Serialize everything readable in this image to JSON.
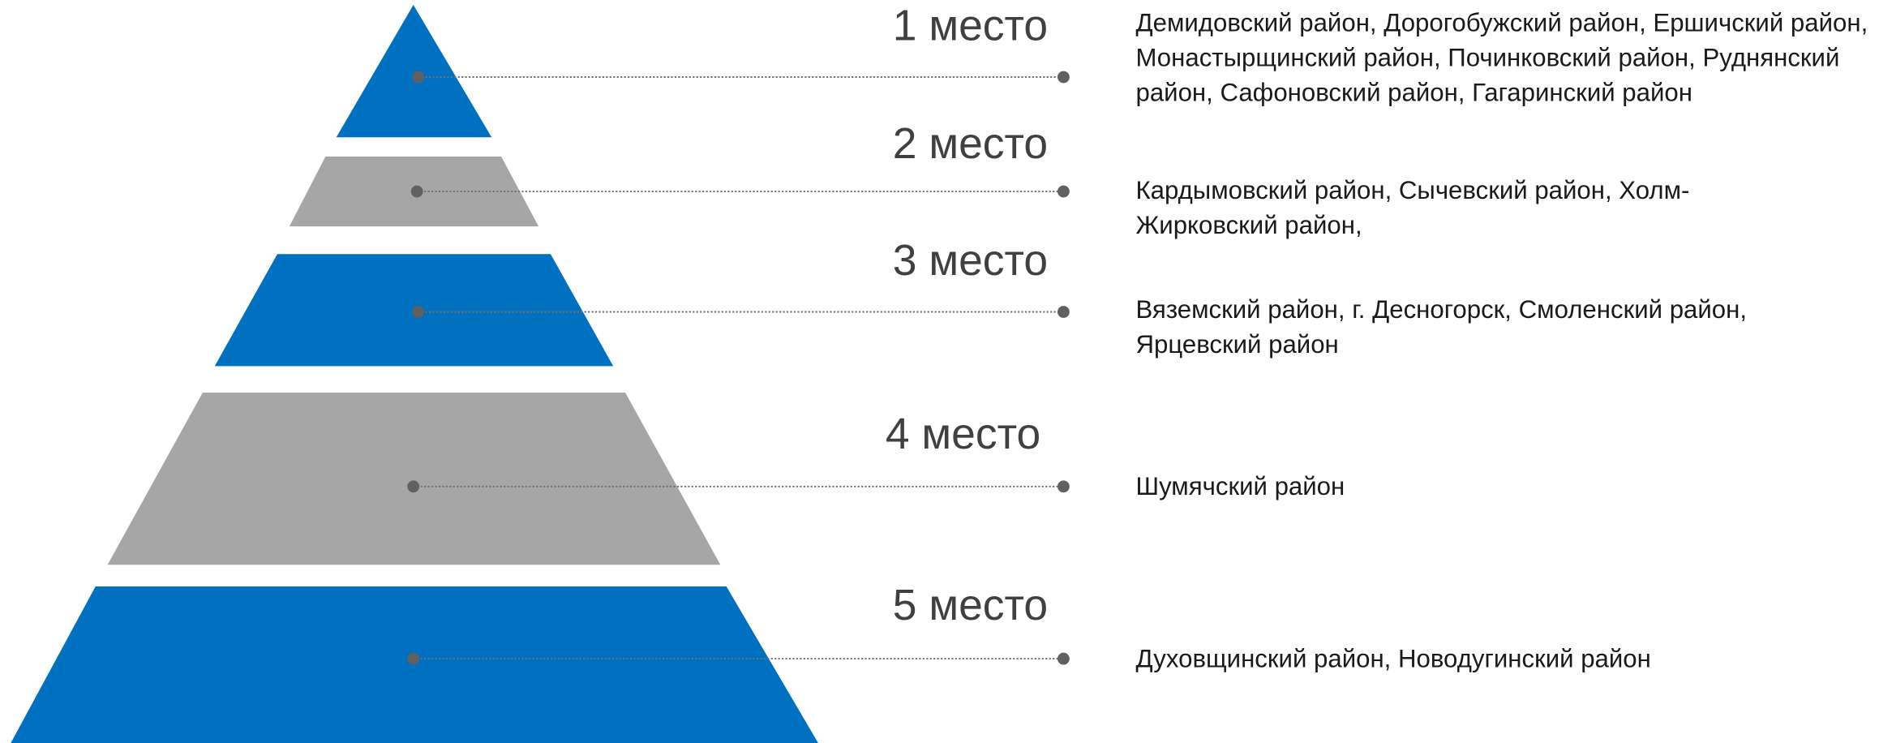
{
  "levels": [
    {
      "place": "1 место",
      "text": "Демидовский район, Дорогобужский район, Ершичский район, Монастырщинский район, Починковский район, Руднянский район, Сафоновский район, Гагаринский район"
    },
    {
      "place": "2 место",
      "text": "Кардымовский район, Сычевский район, Холм-Жирковский район,"
    },
    {
      "place": "3 место",
      "text": "Вяземский район, г. Десногорск, Смоленский район, Ярцевский район"
    },
    {
      "place": "4 место",
      "text": "Шумячский район"
    },
    {
      "place": "5 место",
      "text": "Духовщинский район, Новодугинский район"
    }
  ]
}
